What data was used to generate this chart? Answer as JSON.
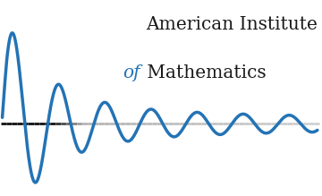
{
  "fig_width": 3.6,
  "fig_height": 2.19,
  "dpi": 100,
  "bg_color": "#ffffff",
  "wave_color": "#2373b5",
  "wave_linewidth": 2.5,
  "axis_line_color_left": "#111111",
  "axis_line_color_right": "#cccccc",
  "text_line1": "American Institute",
  "text_line2_part1": "of",
  "text_line2_part2": " Mathematics",
  "text_color_main": "#1a1a1a",
  "text_color_of": "#2373b5",
  "text_fontsize": 14.5,
  "xlim_left": 0.0,
  "xlim_right": 14.0,
  "ylim_bottom": -3.2,
  "ylim_top": 5.5
}
